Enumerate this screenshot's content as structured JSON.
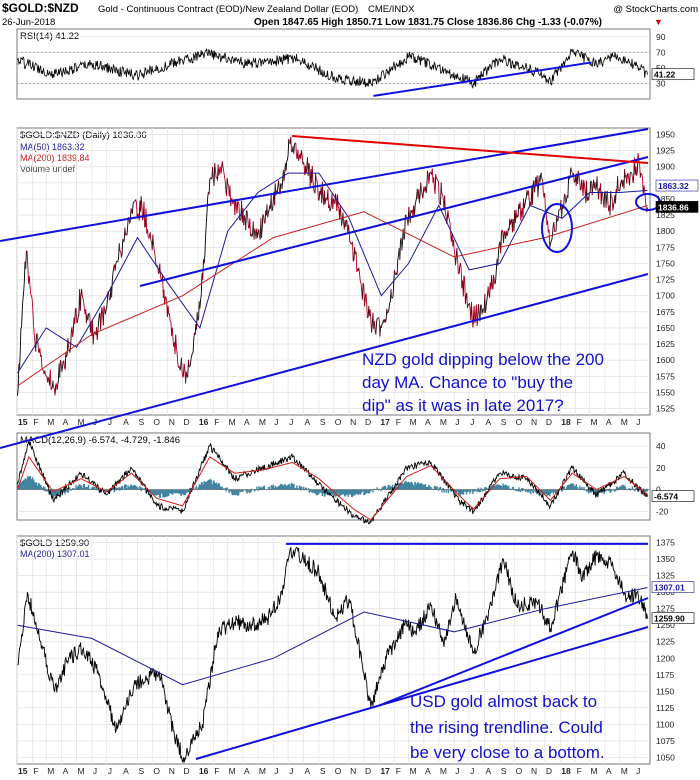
{
  "header": {
    "symbol": "$GOLD:$NZD",
    "description": "Gold - Continuous Contract (EOD)/New Zealand Dollar (EOD)",
    "exchange": "CME/INDX",
    "watermark": "@ StockCharts.com",
    "date": "26-Jun-2018",
    "ohlc_text": "Open 1847.65  High 1850.71  Low 1831.75  Close 1836.86  Chg -1.33 (-0.07%)",
    "chg_arrow": "▼"
  },
  "colors": {
    "price": "#000000",
    "down_bars": "#b00020",
    "ma50": "#1a1aa0",
    "ma200": "#c81e1e",
    "trendline": "#1010dd",
    "resistance": "#e00000",
    "annotation_text": "#1010cc",
    "macd_hist": "#1f6f8f",
    "grid": "#e4e4e4"
  },
  "chart_data": [
    {
      "type": "line",
      "panel": "rsi",
      "legend": "RSI(14) 41.22",
      "last_value_label": "41.22",
      "ylim": [
        10,
        100
      ],
      "yticks": [
        30,
        50,
        70,
        90
      ],
      "x_dates": [
        "2015-01-02",
        "2015-03-15",
        "2015-06-01",
        "2015-09-01",
        "2015-12-01",
        "2016-01-20",
        "2016-04-15",
        "2016-07-15",
        "2016-10-01",
        "2016-12-15",
        "2017-03-01",
        "2017-05-20",
        "2017-07-10",
        "2017-09-01",
        "2017-11-15",
        "2017-12-12",
        "2018-01-25",
        "2018-03-15",
        "2018-04-20",
        "2018-05-20",
        "2018-06-26"
      ],
      "values": [
        60,
        42,
        55,
        40,
        60,
        68,
        55,
        62,
        38,
        30,
        65,
        45,
        30,
        62,
        45,
        33,
        70,
        55,
        64,
        58,
        41.22
      ]
    },
    {
      "type": "line",
      "panel": "main",
      "title": "$GOLD:$NZD (Daily) 1836.86",
      "series_legend": [
        "MA(50) 1863.32",
        "MA(200) 1839.84",
        "Volume undef"
      ],
      "price_label": "1836.86",
      "ma50_label": "1863.32",
      "ma200_label": "1839.84",
      "ylim": [
        1515,
        1960
      ],
      "yticks": [
        1525,
        1550,
        1575,
        1600,
        1625,
        1650,
        1675,
        1700,
        1725,
        1750,
        1775,
        1800,
        1825,
        1850,
        1875,
        1900,
        1925,
        1950
      ],
      "x_axis_labels": [
        "15",
        "F",
        "M",
        "A",
        "M",
        "J",
        "J",
        "A",
        "S",
        "O",
        "N",
        "D",
        "16",
        "F",
        "M",
        "A",
        "M",
        "J",
        "J",
        "A",
        "S",
        "O",
        "N",
        "D",
        "17",
        "F",
        "M",
        "A",
        "M",
        "J",
        "J",
        "A",
        "S",
        "O",
        "N",
        "D",
        "18",
        "F",
        "M",
        "A",
        "M",
        "J"
      ],
      "series": [
        {
          "name": "$GOLD:$NZD",
          "x": [
            "2015-01-02",
            "2015-01-20",
            "2015-02-05",
            "2015-03-01",
            "2015-03-20",
            "2015-04-15",
            "2015-05-10",
            "2015-06-05",
            "2015-07-01",
            "2015-07-25",
            "2015-08-15",
            "2015-09-10",
            "2015-10-05",
            "2015-10-30",
            "2015-11-20",
            "2015-12-10",
            "2016-01-05",
            "2016-01-25",
            "2016-02-15",
            "2016-03-10",
            "2016-04-05",
            "2016-04-30",
            "2016-05-25",
            "2016-06-20",
            "2016-07-05",
            "2016-07-25",
            "2016-08-20",
            "2016-09-15",
            "2016-10-10",
            "2016-11-05",
            "2016-11-25",
            "2016-12-15",
            "2017-01-05",
            "2017-01-30",
            "2017-02-25",
            "2017-03-20",
            "2017-04-15",
            "2017-05-10",
            "2017-06-05",
            "2017-06-25",
            "2017-07-10",
            "2017-07-30",
            "2017-08-25",
            "2017-09-10",
            "2017-10-05",
            "2017-10-30",
            "2017-11-25",
            "2017-12-12",
            "2018-01-05",
            "2018-01-25",
            "2018-02-20",
            "2018-03-15",
            "2018-04-10",
            "2018-05-05",
            "2018-05-25",
            "2018-06-10",
            "2018-06-26"
          ],
          "values": [
            1545,
            1770,
            1640,
            1575,
            1560,
            1620,
            1700,
            1640,
            1680,
            1760,
            1820,
            1840,
            1770,
            1690,
            1610,
            1575,
            1680,
            1880,
            1900,
            1850,
            1820,
            1790,
            1840,
            1880,
            1935,
            1920,
            1880,
            1850,
            1840,
            1780,
            1720,
            1660,
            1650,
            1720,
            1820,
            1850,
            1890,
            1850,
            1760,
            1700,
            1665,
            1680,
            1740,
            1800,
            1820,
            1850,
            1880,
            1780,
            1840,
            1890,
            1860,
            1870,
            1840,
            1880,
            1890,
            1905,
            1836.86
          ]
        },
        {
          "name": "MA(50)",
          "x": [
            "2015-01-02",
            "2015-03-01",
            "2015-05-01",
            "2015-07-01",
            "2015-09-01",
            "2015-11-01",
            "2016-01-05",
            "2016-03-01",
            "2016-05-01",
            "2016-07-01",
            "2016-09-01",
            "2016-11-01",
            "2017-01-05",
            "2017-03-01",
            "2017-05-01",
            "2017-07-01",
            "2017-09-01",
            "2017-11-01",
            "2018-01-05",
            "2018-03-01",
            "2018-05-01",
            "2018-06-26"
          ],
          "values": [
            1580,
            1650,
            1620,
            1700,
            1790,
            1720,
            1650,
            1800,
            1860,
            1890,
            1890,
            1820,
            1700,
            1750,
            1840,
            1740,
            1750,
            1840,
            1820,
            1860,
            1860,
            1863.32
          ]
        },
        {
          "name": "MA(200)",
          "x": [
            "2015-01-02",
            "2015-06-01",
            "2015-12-01",
            "2016-06-01",
            "2016-12-01",
            "2017-06-01",
            "2017-12-01",
            "2018-06-26"
          ],
          "values": [
            1560,
            1640,
            1700,
            1790,
            1830,
            1760,
            1790,
            1839.84
          ]
        }
      ]
    },
    {
      "type": "line",
      "panel": "macd",
      "legend": "MACD(12,26,9) -6.574, -4.729, -1.846",
      "last_value_label": "-6.574",
      "ylim": [
        -28,
        52
      ],
      "yticks": [
        -20,
        0,
        20,
        40
      ],
      "x_dates": [
        "2015-01-02",
        "2015-01-25",
        "2015-03-15",
        "2015-05-10",
        "2015-07-01",
        "2015-08-20",
        "2015-10-10",
        "2015-12-01",
        "2016-01-25",
        "2016-03-15",
        "2016-05-10",
        "2016-07-10",
        "2016-09-01",
        "2016-11-10",
        "2016-12-15",
        "2017-02-25",
        "2017-04-15",
        "2017-06-10",
        "2017-07-10",
        "2017-09-01",
        "2017-10-25",
        "2017-12-12",
        "2018-01-25",
        "2018-03-15",
        "2018-05-10",
        "2018-06-26"
      ],
      "series": [
        {
          "name": "MACD",
          "values": [
            5,
            45,
            -10,
            15,
            -5,
            20,
            -15,
            -20,
            40,
            10,
            20,
            30,
            5,
            -25,
            -30,
            20,
            25,
            -10,
            -20,
            15,
            10,
            -15,
            20,
            -5,
            15,
            -6.574
          ]
        },
        {
          "name": "Signal",
          "values": [
            0,
            30,
            -2,
            10,
            -2,
            15,
            -8,
            -15,
            30,
            15,
            18,
            25,
            10,
            -18,
            -28,
            12,
            22,
            -5,
            -18,
            10,
            12,
            -10,
            15,
            0,
            12,
            -4.729
          ]
        }
      ]
    },
    {
      "type": "line",
      "panel": "usd_gold",
      "title": "$GOLD 1259.90",
      "series_legend": [
        "MA(200) 1307.01"
      ],
      "price_label": "1259.90",
      "ma200_label": "1307.01",
      "ylim": [
        1040,
        1385
      ],
      "yticks": [
        1050,
        1075,
        1100,
        1125,
        1150,
        1175,
        1200,
        1225,
        1250,
        1275,
        1300,
        1325,
        1350,
        1375
      ],
      "x_axis_labels": [
        "15",
        "F",
        "M",
        "A",
        "M",
        "J",
        "J",
        "A",
        "S",
        "O",
        "N",
        "D",
        "16",
        "F",
        "M",
        "A",
        "M",
        "J",
        "J",
        "A",
        "S",
        "O",
        "N",
        "D",
        "17",
        "F",
        "M",
        "A",
        "M",
        "J",
        "J",
        "A",
        "S",
        "O",
        "N",
        "D",
        "18",
        "F",
        "M",
        "A",
        "M",
        "J"
      ],
      "series": [
        {
          "name": "$GOLD",
          "x": [
            "2015-01-02",
            "2015-01-22",
            "2015-02-15",
            "2015-03-18",
            "2015-04-15",
            "2015-05-15",
            "2015-06-15",
            "2015-07-20",
            "2015-08-25",
            "2015-10-15",
            "2015-11-15",
            "2015-12-03",
            "2016-01-10",
            "2016-02-10",
            "2016-03-15",
            "2016-04-20",
            "2016-05-20",
            "2016-06-15",
            "2016-07-05",
            "2016-08-01",
            "2016-09-01",
            "2016-10-05",
            "2016-11-01",
            "2016-12-15",
            "2017-01-15",
            "2017-02-20",
            "2017-03-15",
            "2017-04-15",
            "2017-05-10",
            "2017-06-05",
            "2017-07-10",
            "2017-08-15",
            "2017-09-08",
            "2017-10-05",
            "2017-11-15",
            "2017-12-12",
            "2018-01-25",
            "2018-02-15",
            "2018-03-15",
            "2018-04-15",
            "2018-05-15",
            "2018-06-05",
            "2018-06-26"
          ],
          "values": [
            1190,
            1300,
            1230,
            1150,
            1200,
            1215,
            1175,
            1090,
            1160,
            1180,
            1080,
            1050,
            1100,
            1240,
            1255,
            1250,
            1260,
            1290,
            1365,
            1350,
            1330,
            1260,
            1290,
            1125,
            1200,
            1250,
            1240,
            1280,
            1225,
            1290,
            1210,
            1280,
            1350,
            1280,
            1285,
            1245,
            1360,
            1325,
            1355,
            1340,
            1290,
            1300,
            1259.9
          ]
        },
        {
          "name": "MA(200)",
          "x": [
            "2015-01-02",
            "2015-06-01",
            "2015-12-01",
            "2016-06-01",
            "2016-12-01",
            "2017-06-01",
            "2017-12-01",
            "2018-06-26"
          ],
          "values": [
            1250,
            1230,
            1160,
            1200,
            1270,
            1240,
            1275,
            1307.01
          ]
        }
      ]
    }
  ],
  "annotations": {
    "nzd": [
      "NZD gold dipping below the 200",
      "day MA. Chance to \"buy the",
      "dip\" as it was in late 2017?"
    ],
    "usd": [
      "USD gold almost back to",
      "the rising trendline. Could",
      "be very close to a bottom."
    ]
  }
}
